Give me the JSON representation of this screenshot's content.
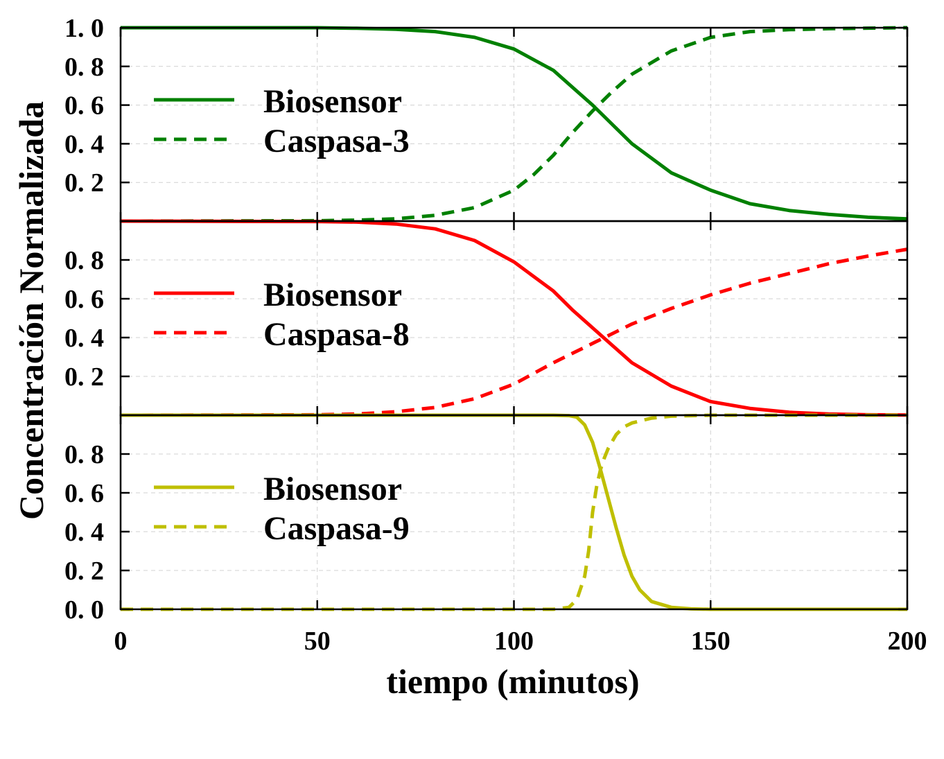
{
  "chart_data": {
    "type": "line",
    "layout": "3 vertically stacked panels sharing x-axis",
    "xlabel": "tiempo (minutos)",
    "ylabel": "Concentración Normalizada",
    "xlim": [
      0,
      200
    ],
    "x_ticks": [
      0,
      50,
      100,
      150,
      200
    ],
    "grid": true,
    "legend_placement": "left",
    "panels": [
      {
        "color": "#008000",
        "ylim": [
          0,
          1.0
        ],
        "y_ticks": [
          0.2,
          0.4,
          0.6,
          0.8,
          1.0
        ],
        "y_tick_labels": [
          "0. 2",
          "0. 4",
          "0. 6",
          "0. 8",
          "1. 0"
        ],
        "series": [
          {
            "name": "Biosensor",
            "style": "solid",
            "x": [
              0,
              50,
              60,
              70,
              80,
              90,
              100,
              110,
              115,
              120,
              125,
              130,
              140,
              150,
              160,
              170,
              180,
              190,
              200
            ],
            "y": [
              1.0,
              1.0,
              0.997,
              0.992,
              0.98,
              0.95,
              0.89,
              0.78,
              0.69,
              0.6,
              0.5,
              0.4,
              0.25,
              0.16,
              0.09,
              0.055,
              0.035,
              0.02,
              0.012
            ]
          },
          {
            "name": "Caspasa-3",
            "style": "dashed",
            "x": [
              0,
              50,
              60,
              70,
              80,
              90,
              100,
              105,
              110,
              115,
              120,
              125,
              130,
              140,
              150,
              160,
              170,
              180,
              190,
              200
            ],
            "y": [
              0.0,
              0.002,
              0.005,
              0.012,
              0.03,
              0.07,
              0.16,
              0.24,
              0.34,
              0.46,
              0.57,
              0.67,
              0.76,
              0.88,
              0.95,
              0.98,
              0.99,
              0.995,
              0.998,
              1.0
            ]
          }
        ]
      },
      {
        "color": "#ff0000",
        "ylim": [
          0,
          1.0
        ],
        "y_ticks": [
          0.2,
          0.4,
          0.6,
          0.8
        ],
        "y_tick_labels": [
          "0. 2",
          "0. 4",
          "0. 6",
          "0. 8"
        ],
        "series": [
          {
            "name": "Biosensor",
            "style": "solid",
            "x": [
              0,
              50,
              60,
              70,
              80,
              90,
              100,
              110,
              115,
              120,
              125,
              130,
              140,
              150,
              160,
              170,
              180,
              190,
              200
            ],
            "y": [
              1.0,
              0.998,
              0.995,
              0.985,
              0.96,
              0.9,
              0.79,
              0.64,
              0.54,
              0.45,
              0.36,
              0.27,
              0.15,
              0.07,
              0.035,
              0.015,
              0.006,
              0.002,
              0.001
            ]
          },
          {
            "name": "Caspasa-8",
            "style": "dashed",
            "x": [
              0,
              50,
              60,
              70,
              80,
              90,
              100,
              110,
              120,
              130,
              140,
              150,
              160,
              170,
              180,
              190,
              200
            ],
            "y": [
              0.0,
              0.002,
              0.006,
              0.018,
              0.04,
              0.085,
              0.16,
              0.27,
              0.37,
              0.47,
              0.55,
              0.62,
              0.68,
              0.73,
              0.78,
              0.82,
              0.855
            ]
          }
        ]
      },
      {
        "color": "#bfbf00",
        "ylim": [
          0,
          1.0
        ],
        "y_ticks": [
          0.0,
          0.2,
          0.4,
          0.6,
          0.8
        ],
        "y_tick_labels": [
          "0. 0",
          "0. 2",
          "0. 4",
          "0. 6",
          "0. 8"
        ],
        "series": [
          {
            "name": "Biosensor",
            "style": "solid",
            "x": [
              0,
              110,
              114,
              116,
              118,
              120,
              122,
              124,
              126,
              128,
              130,
              132,
              135,
              140,
              145,
              150,
              200
            ],
            "y": [
              1.0,
              1.0,
              0.998,
              0.99,
              0.95,
              0.86,
              0.72,
              0.57,
              0.42,
              0.28,
              0.17,
              0.1,
              0.04,
              0.01,
              0.002,
              0.0,
              0.0
            ]
          },
          {
            "name": "Caspasa-9",
            "style": "dashed",
            "x": [
              0,
              110,
              114,
              116,
              118,
              119,
              120,
              121,
              122,
              123,
              124,
              126,
              128,
              130,
              135,
              140,
              150,
              160,
              200
            ],
            "y": [
              0.0,
              0.0,
              0.01,
              0.05,
              0.17,
              0.3,
              0.5,
              0.63,
              0.72,
              0.78,
              0.83,
              0.9,
              0.94,
              0.96,
              0.985,
              0.995,
              1.0,
              1.0,
              1.0
            ]
          }
        ]
      }
    ]
  }
}
